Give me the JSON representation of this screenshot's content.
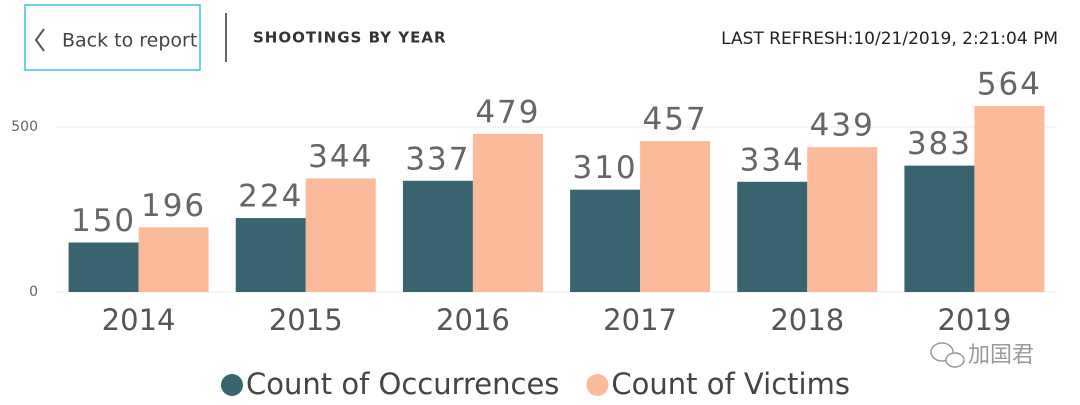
{
  "header": {
    "back_button": "Back to report",
    "title": "SHOOTINGS BY YEAR",
    "last_refresh": "LAST REFRESH:10/21/2019, 2:21:04 PM"
  },
  "watermark": "加国君",
  "chart_data": {
    "type": "bar",
    "categories": [
      "2014",
      "2015",
      "2016",
      "2017",
      "2018",
      "2019"
    ],
    "series": [
      {
        "name": "Count of Occurrences",
        "color": "#37646f",
        "values": [
          150,
          224,
          337,
          310,
          334,
          383
        ]
      },
      {
        "name": "Count of Victims",
        "color": "#fbbb9b",
        "values": [
          196,
          344,
          479,
          457,
          439,
          564
        ]
      }
    ],
    "ylim": [
      0,
      600
    ],
    "yticks": [
      0,
      500
    ],
    "grid": true,
    "legend": "bottom"
  }
}
